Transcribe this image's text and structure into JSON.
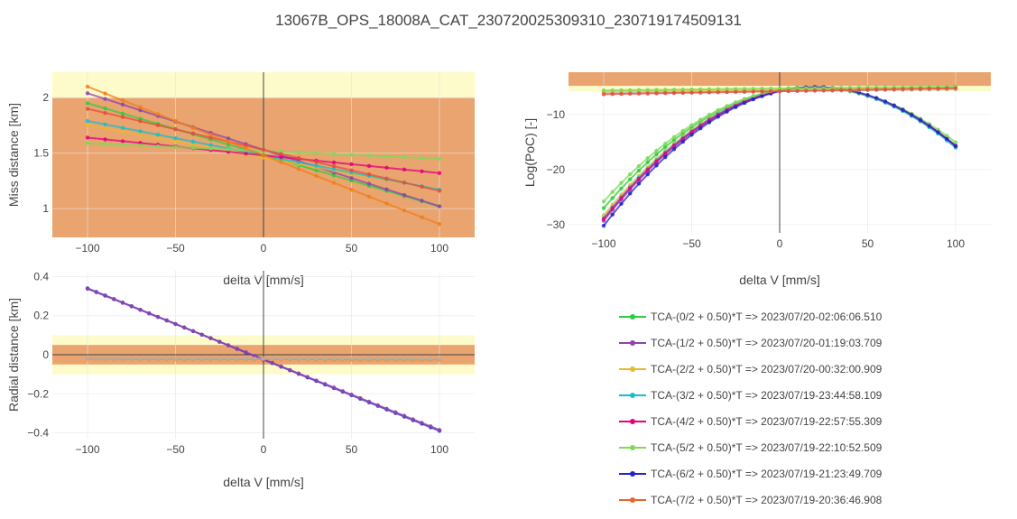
{
  "title": "13067B_OPS_18008A_CAT_230720025309310_230719174509131",
  "chart_data": [
    {
      "id": "miss",
      "type": "line",
      "xlabel": "delta V [mm/s]",
      "ylabel": "Miss distance [km]",
      "xlim": [
        -120,
        120
      ],
      "ylim": [
        0.74,
        2.23
      ],
      "xticks": [
        -100,
        -50,
        0,
        50,
        100
      ],
      "yticks": [
        1,
        1.5,
        2
      ],
      "ytick_labels": [
        "1",
        "1.5",
        "2"
      ],
      "bands": [
        {
          "from": 0.74,
          "to": 2.0,
          "color": "#e9a46f"
        },
        {
          "from": 2.0,
          "to": 2.23,
          "color": "#fdfbc9"
        }
      ],
      "x": [
        -100,
        -90,
        -80,
        -70,
        -60,
        -50,
        -40,
        -30,
        -20,
        -10,
        0,
        10,
        20,
        30,
        40,
        50,
        60,
        70,
        80,
        90,
        100
      ],
      "series": [
        {
          "color": "#2ecc40",
          "y0": 1.95,
          "y1": 1.02
        },
        {
          "color": "#8e44ad",
          "y0": 2.04,
          "y1": 1.02
        },
        {
          "color": "#e8b830",
          "y0": 1.75,
          "y1": 1.17
        },
        {
          "color": "#17becf",
          "y0": 1.79,
          "y1": 1.17
        },
        {
          "color": "#e6007e",
          "y0": 1.64,
          "y1": 1.32
        },
        {
          "color": "#7ed957",
          "y0": 1.59,
          "y1": 1.45
        },
        {
          "color": "#e74c3c",
          "y0": 1.9,
          "y1": 1.16
        },
        {
          "color": "#f07f1a",
          "y0": 2.1,
          "y1": 0.86
        }
      ]
    },
    {
      "id": "poc",
      "type": "line",
      "xlabel": "delta V [mm/s]",
      "ylabel": "Log(PoC) [-]",
      "xlim": [
        -120,
        120
      ],
      "ylim": [
        -31.5,
        -2.3
      ],
      "xticks": [
        -100,
        -50,
        0,
        50,
        100
      ],
      "yticks": [
        -10,
        -20,
        -30
      ],
      "ytick_labels": [
        "−10",
        "−20",
        "−30"
      ],
      "bands": [
        {
          "from": -4.8,
          "to": -2.3,
          "color": "#e9a46f"
        },
        {
          "from": -5.8,
          "to": -4.8,
          "color": "#fdfbc9"
        }
      ],
      "x": [
        -100,
        -95,
        -90,
        -85,
        -80,
        -75,
        -70,
        -65,
        -60,
        -55,
        -50,
        -45,
        -40,
        -35,
        -30,
        -25,
        -20,
        -15,
        -10,
        -5,
        0,
        5,
        10,
        15,
        20,
        25,
        30,
        35,
        40,
        45,
        50,
        55,
        60,
        65,
        70,
        75,
        80,
        85,
        90,
        95,
        100
      ],
      "series": [
        {
          "color": "#2ecc40",
          "vertex_x": 18,
          "vertex_y": -5.0,
          "y_left": -27.0
        },
        {
          "color": "#8e44ad",
          "vertex_x": 20,
          "vertex_y": -5.0,
          "y_left": -29.3
        },
        {
          "color": "#e8b830",
          "vertex_x": 19,
          "vertex_y": -5.0,
          "y_left": -28.3
        },
        {
          "color": "#17becf",
          "vertex_x": 19,
          "vertex_y": -5.0,
          "y_left": -28.8
        },
        {
          "color": "#e6007e",
          "vertex_x": 20,
          "vertex_y": -5.0,
          "y_left": -29.0
        },
        {
          "color": "#7ed957",
          "vertex_x": 18,
          "vertex_y": -5.0,
          "y_left": -25.8
        },
        {
          "color": "#2222cc",
          "vertex_x": 21,
          "vertex_y": -5.0,
          "y_left": -30.2
        },
        {
          "color": "#b0b0b0",
          "flat_from": -6.1,
          "flat_to": -5.4
        },
        {
          "color": "#e8b830",
          "flat_from": -5.8,
          "flat_to": -5.1
        },
        {
          "color": "#7ed957",
          "flat_from": -5.6,
          "flat_to": -4.9
        },
        {
          "color": "#e74c3c",
          "flat_from": -6.3,
          "flat_to": -5.2
        }
      ]
    },
    {
      "id": "radial",
      "type": "line",
      "xlabel": "delta V [mm/s]",
      "ylabel": "Radial distance [km]",
      "xlim": [
        -120,
        120
      ],
      "ylim": [
        -0.43,
        0.43
      ],
      "xticks": [
        -100,
        -50,
        0,
        50,
        100
      ],
      "yticks": [
        0.4,
        0.2,
        0,
        -0.2,
        -0.4
      ],
      "ytick_labels": [
        "0.4",
        "0.2",
        "0",
        "−0.2",
        "−0.4"
      ],
      "bands": [
        {
          "from": -0.1,
          "to": 0.1,
          "color": "#fdfbc9"
        },
        {
          "from": -0.05,
          "to": 0.05,
          "color": "#e9a46f"
        }
      ],
      "x": [
        -100,
        -95,
        -90,
        -85,
        -80,
        -75,
        -70,
        -65,
        -60,
        -55,
        -50,
        -45,
        -40,
        -35,
        -30,
        -25,
        -20,
        -15,
        -10,
        -5,
        0,
        5,
        10,
        15,
        20,
        25,
        30,
        35,
        40,
        45,
        50,
        55,
        60,
        65,
        70,
        75,
        80,
        85,
        90,
        95,
        100
      ],
      "series": [
        {
          "color": "#2222cc",
          "y0": 0.34,
          "y1": -0.39
        },
        {
          "color": "#8e44ad",
          "y0": 0.338,
          "y1": -0.385
        },
        {
          "color": "#f07f1a",
          "y0": -0.02,
          "y1": -0.025
        },
        {
          "color": "#b0b0b0",
          "y0": -0.018,
          "y1": -0.022
        }
      ]
    }
  ],
  "legend": [
    {
      "label": "TCA-(0/2 + 0.50)*T => 2023/07/20-02:06:06.510",
      "color": "#2ecc40"
    },
    {
      "label": "TCA-(1/2 + 0.50)*T => 2023/07/20-01:19:03.709",
      "color": "#8e44ad"
    },
    {
      "label": "TCA-(2/2 + 0.50)*T => 2023/07/20-00:32:00.909",
      "color": "#e8b830"
    },
    {
      "label": "TCA-(3/2 + 0.50)*T => 2023/07/19-23:44:58.109",
      "color": "#17becf"
    },
    {
      "label": "TCA-(4/2 + 0.50)*T => 2023/07/19-22:57:55.309",
      "color": "#e6007e"
    },
    {
      "label": "TCA-(5/2 + 0.50)*T => 2023/07/19-22:10:52.509",
      "color": "#7ed957"
    },
    {
      "label": "TCA-(6/2 + 0.50)*T => 2023/07/19-21:23:49.709",
      "color": "#2222cc"
    },
    {
      "label": "TCA-(7/2 + 0.50)*T => 2023/07/19-20:36:46.908",
      "color": "#e8642a"
    }
  ]
}
